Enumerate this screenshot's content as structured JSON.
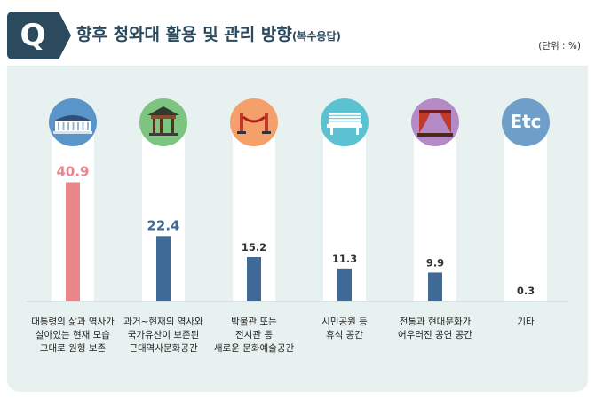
{
  "header": {
    "badge": "Q",
    "title": "향후 청와대 활용 및 관리 방향",
    "title_sub": "(복수응답)",
    "unit": "(단위 : %)"
  },
  "icons": [
    {
      "name": "blue-house-building-icon",
      "color": "#5a95c9"
    },
    {
      "name": "pavilion-icon",
      "color": "#7cc47f"
    },
    {
      "name": "museum-rope-icon",
      "color": "#f5a06a"
    },
    {
      "name": "bench-icon",
      "color": "#5cc1d1"
    },
    {
      "name": "stage-curtain-icon",
      "color": "#b48ac7"
    },
    {
      "name": "etc-icon",
      "color": "#6f9fc9",
      "text": "Etc"
    }
  ],
  "chart_data": {
    "type": "bar",
    "categories": [
      "대통령의 삶과 역사가\n살아있는 현재 모습\n그대로 원형 보존",
      "과거~현재의 역사와\n국가유산이 보존된\n근대역사문화공간",
      "박물관 또는\n전시관 등\n새로운 문화예술공간",
      "시민공원 등\n휴식 공간",
      "전통과 현대문화가\n어우러진 공연 공간",
      "기타"
    ],
    "values": [
      40.9,
      22.4,
      15.2,
      11.3,
      9.9,
      0.3
    ],
    "value_labels": [
      "40.9",
      "22.4",
      "15.2",
      "11.3",
      "9.9",
      "0.3"
    ],
    "bar_colors": [
      "#e8868b",
      "#3f6a98",
      "#3f6a98",
      "#3f6a98",
      "#3f6a98",
      "#3f6a98"
    ],
    "label_colors": [
      "#e8868b",
      "#3f6a98",
      "#333333",
      "#333333",
      "#333333",
      "#333333"
    ],
    "ylim": [
      0,
      45
    ]
  }
}
